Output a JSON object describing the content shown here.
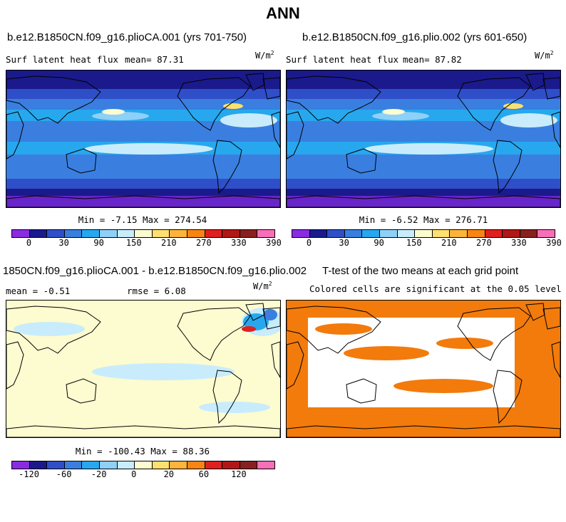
{
  "title": "ANN",
  "units": {
    "base": "W/m",
    "exp": "2"
  },
  "panels": {
    "p1": {
      "title": "b.e12.B1850CN.f09_g16.plioCA.001 (yrs 701-750)",
      "left_label": "Surf latent heat flux",
      "stat": "mean=  87.31",
      "minmax": "Min =  -7.15 Max = 274.54"
    },
    "p2": {
      "title": "b.e12.B1850CN.f09_g16.plio.002 (yrs 601-650)",
      "left_label": "Surf latent heat flux",
      "stat": "mean=  87.82",
      "minmax": "Min =  -6.52 Max = 276.71"
    },
    "p3": {
      "title": "1850CN.f09_g16.plioCA.001 - b.e12.B1850CN.f09_g16.plio.002",
      "left_label": "mean =  -0.51",
      "stat": "rmse =   6.08",
      "minmax": "Min = -100.43 Max = 88.36"
    },
    "p4": {
      "title": "T-test of the two means at each grid point",
      "subtitle": "Colored cells are significant at the 0.05 level"
    }
  },
  "colorbars": {
    "abs": {
      "labels": [
        "0",
        "30",
        "90",
        "150",
        "210",
        "270",
        "330",
        "390"
      ],
      "colors": [
        "#8a2be2",
        "#1a1a8c",
        "#2f4fc8",
        "#3a7fe0",
        "#27a8ee",
        "#8fd0f8",
        "#c8ecfc",
        "#fcfcd0",
        "#fce070",
        "#fcb43a",
        "#f88414",
        "#e02020",
        "#b01818",
        "#882020",
        "#f76fb8"
      ]
    },
    "diff": {
      "labels": [
        "-120",
        "-60",
        "-20",
        "0",
        "20",
        "60",
        "120"
      ],
      "colors": [
        "#8a2be2",
        "#1a1a8c",
        "#2f4fc8",
        "#3a7fe0",
        "#27a8ee",
        "#8fd0f8",
        "#c8ecfc",
        "#fcfcd0",
        "#fce070",
        "#fcb43a",
        "#f88414",
        "#e02020",
        "#b01818",
        "#882020",
        "#f76fb8"
      ]
    }
  },
  "colors": {
    "ttest": "#f27b0c",
    "diff_bg": "#fdfbd0",
    "diff_light": "#c8ecfc"
  }
}
